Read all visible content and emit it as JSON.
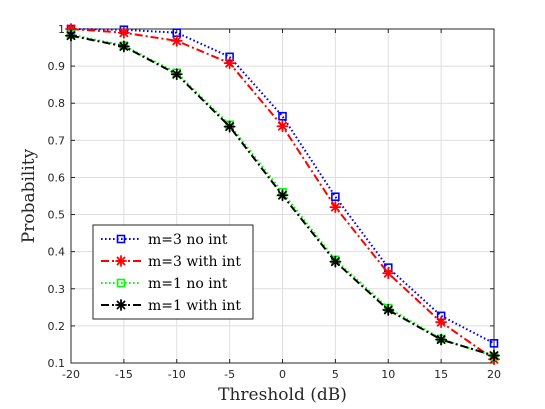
{
  "chart_data": {
    "type": "line",
    "xlabel": "Threshold (dB)",
    "ylabel": "Probability",
    "xlim": [
      -20,
      20
    ],
    "ylim": [
      0.1,
      1
    ],
    "x": [
      -20,
      -15,
      -10,
      -5,
      0,
      5,
      10,
      15,
      20
    ],
    "xticks": [
      "-20",
      "-15",
      "-10",
      "-5",
      "0",
      "5",
      "10",
      "15",
      "20"
    ],
    "yticks": [
      "0.1",
      "0.2",
      "0.3",
      "0.4",
      "0.5",
      "0.6",
      "0.7",
      "0.8",
      "0.9",
      "1"
    ],
    "grid": true,
    "legend_position": "bottom-left",
    "series": [
      {
        "name": "m=3 no int",
        "color": "#0000ff",
        "linestyle": "dotted",
        "marker": "square",
        "values": [
          1.0,
          0.998,
          0.99,
          0.925,
          0.765,
          0.548,
          0.357,
          0.227,
          0.153
        ]
      },
      {
        "name": "m=3 with int",
        "color": "#ff0000",
        "linestyle": "dashdot",
        "marker": "asterisk",
        "values": [
          1.0,
          0.99,
          0.968,
          0.908,
          0.738,
          0.52,
          0.342,
          0.21,
          0.11
        ]
      },
      {
        "name": "m=1 no int",
        "color": "#00ff00",
        "linestyle": "dotted",
        "marker": "square",
        "values": [
          0.985,
          0.955,
          0.882,
          0.742,
          0.56,
          0.378,
          0.248,
          0.165,
          0.118
        ]
      },
      {
        "name": "m=1 with int",
        "color": "#000000",
        "linestyle": "dashdot",
        "marker": "asterisk",
        "values": [
          0.982,
          0.953,
          0.878,
          0.737,
          0.552,
          0.373,
          0.243,
          0.163,
          0.12
        ]
      }
    ]
  }
}
